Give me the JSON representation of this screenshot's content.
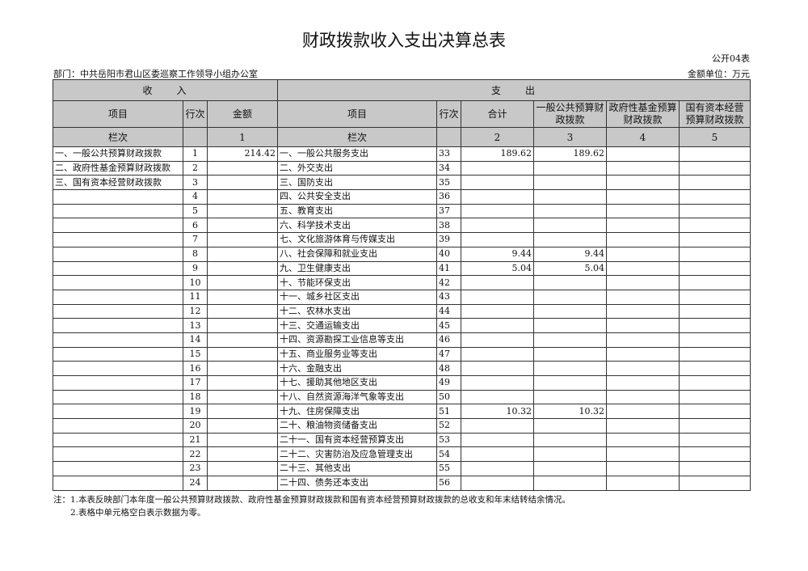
{
  "title": "财政拨款收入支出决算总表",
  "form_code": "公开04表",
  "department": "部门：中共岳阳市君山区委巡察工作领导小组办公室",
  "unit": "金额单位：万元",
  "header": {
    "income": "收　　入",
    "expense": "支　　出",
    "item": "项目",
    "row_no": "行次",
    "amount": "金额",
    "item2": "项目",
    "row_no2": "行次",
    "total": "合计",
    "general": "一般公共预算财政拨款",
    "fund": "政府性基金预算财政拨款",
    "capital": "国有资本经营预算财政拨款",
    "col_label": "栏次",
    "col_label2": "栏次",
    "c1": "1",
    "c2": "2",
    "c3": "3",
    "c4": "4",
    "c5": "5"
  },
  "rows": [
    {
      "in_item": "一、一般公共预算财政拨款",
      "in_no": "1",
      "in_amt": "214.42",
      "out_item": "一、一般公共服务支出",
      "out_no": "33",
      "total": "189.62",
      "general": "189.62"
    },
    {
      "in_item": "二、政府性基金预算财政拨款",
      "in_no": "2",
      "out_item": "二、外交支出",
      "out_no": "34"
    },
    {
      "in_item": "三、国有资本经营财政拨款",
      "in_no": "3",
      "out_item": "三、国防支出",
      "out_no": "35"
    },
    {
      "in_no": "4",
      "out_item": "四、公共安全支出",
      "out_no": "36"
    },
    {
      "in_no": "5",
      "out_item": "五、教育支出",
      "out_no": "37"
    },
    {
      "in_no": "6",
      "out_item": "六、科学技术支出",
      "out_no": "38"
    },
    {
      "in_no": "7",
      "out_item": "七、文化旅游体育与传媒支出",
      "out_no": "39"
    },
    {
      "in_no": "8",
      "out_item": "八、社会保障和就业支出",
      "out_no": "40",
      "total": "9.44",
      "general": "9.44"
    },
    {
      "in_no": "9",
      "out_item": "九、卫生健康支出",
      "out_no": "41",
      "total": "5.04",
      "general": "5.04"
    },
    {
      "in_no": "10",
      "out_item": "十、节能环保支出",
      "out_no": "42"
    },
    {
      "in_no": "11",
      "out_item": "十一、城乡社区支出",
      "out_no": "43"
    },
    {
      "in_no": "12",
      "out_item": "十二、农林水支出",
      "out_no": "44"
    },
    {
      "in_no": "13",
      "out_item": "十三、交通运输支出",
      "out_no": "45"
    },
    {
      "in_no": "14",
      "out_item": "十四、资源勘探工业信息等支出",
      "out_no": "46"
    },
    {
      "in_no": "15",
      "out_item": "十五、商业服务业等支出",
      "out_no": "47"
    },
    {
      "in_no": "16",
      "out_item": "十六、金融支出",
      "out_no": "48"
    },
    {
      "in_no": "17",
      "out_item": "十七、援助其他地区支出",
      "out_no": "49"
    },
    {
      "in_no": "18",
      "out_item": "十八、自然资源海洋气象等支出",
      "out_no": "50"
    },
    {
      "in_no": "19",
      "out_item": "十九、住房保障支出",
      "out_no": "51",
      "total": "10.32",
      "general": "10.32"
    },
    {
      "in_no": "20",
      "out_item": "二十、粮油物资储备支出",
      "out_no": "52"
    },
    {
      "in_no": "21",
      "out_item": "二十一、国有资本经营预算支出",
      "out_no": "53"
    },
    {
      "in_no": "22",
      "out_item": "二十二、灾害防治及应急管理支出",
      "out_no": "54"
    },
    {
      "in_no": "23",
      "out_item": "二十三、其他支出",
      "out_no": "55"
    },
    {
      "in_no": "24",
      "out_item": "二十四、债务还本支出",
      "out_no": "56"
    }
  ],
  "notes": [
    "注：1.本表反映部门本年度一般公共预算财政拨款、政府性基金预算财政拨款和国有资本经营预算财政拨款的总收支和年末结转结余情况。",
    "　　2.表格中单元格空白表示数据为零。"
  ]
}
